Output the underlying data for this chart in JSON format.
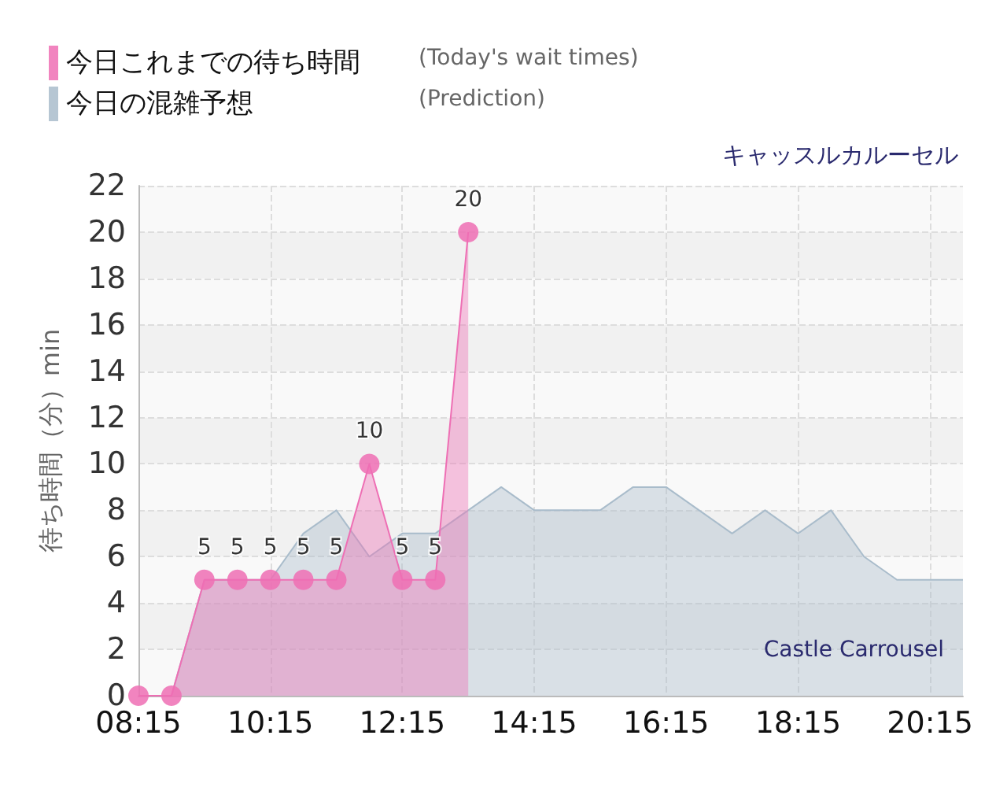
{
  "chart_data": {
    "type": "area",
    "title": "キャッスルカルーセル",
    "ylabel": "待ち時間（分）min",
    "annotations": [
      "(Today's wait times)",
      "(Prediction)",
      "Castle Carrousel"
    ],
    "x": [
      8.25,
      8.75,
      9.25,
      9.75,
      10.25,
      10.75,
      11.25,
      11.75,
      12.25,
      12.75,
      13.25,
      13.75,
      14.25,
      14.75,
      15.25,
      15.75,
      16.25,
      16.75,
      17.25,
      17.75,
      18.25,
      18.75,
      19.25,
      19.75,
      20.25,
      20.75
    ],
    "series": [
      {
        "name": "今日これまでの待ち時間",
        "color": "#ee6fb4",
        "marker": "circle",
        "x": [
          8.25,
          8.75,
          9.25,
          9.75,
          10.25,
          10.75,
          11.25,
          11.75,
          12.25,
          12.75,
          13.25
        ],
        "values": [
          0,
          0,
          5,
          5,
          5,
          5,
          5,
          10,
          5,
          5,
          20
        ],
        "value_labels": [
          null,
          null,
          "5",
          "5",
          "5",
          "5",
          "5",
          "10",
          "5",
          "5",
          "20"
        ]
      },
      {
        "name": "今日の混雑予想",
        "color": "#a9bccb",
        "values": [
          0,
          0,
          5,
          5,
          5,
          7,
          8,
          6,
          7,
          7,
          8,
          9,
          8,
          8,
          8,
          9,
          9,
          8,
          7,
          8,
          7,
          8,
          6,
          5,
          5,
          5
        ]
      }
    ],
    "xlim": [
      8.25,
      20.75
    ],
    "xticks": [
      {
        "value": 8.25,
        "label": "08:15"
      },
      {
        "value": 10.25,
        "label": "10:15"
      },
      {
        "value": 12.25,
        "label": "12:15"
      },
      {
        "value": 14.25,
        "label": "14:15"
      },
      {
        "value": 16.25,
        "label": "16:15"
      },
      {
        "value": 18.25,
        "label": "18:15"
      },
      {
        "value": 20.25,
        "label": "20:15"
      }
    ],
    "ylim": [
      0,
      22
    ],
    "yticks": [
      0,
      2,
      4,
      6,
      8,
      10,
      12,
      14,
      16,
      18,
      20,
      22
    ],
    "grid": true,
    "legend": "top left",
    "marker": "none"
  }
}
